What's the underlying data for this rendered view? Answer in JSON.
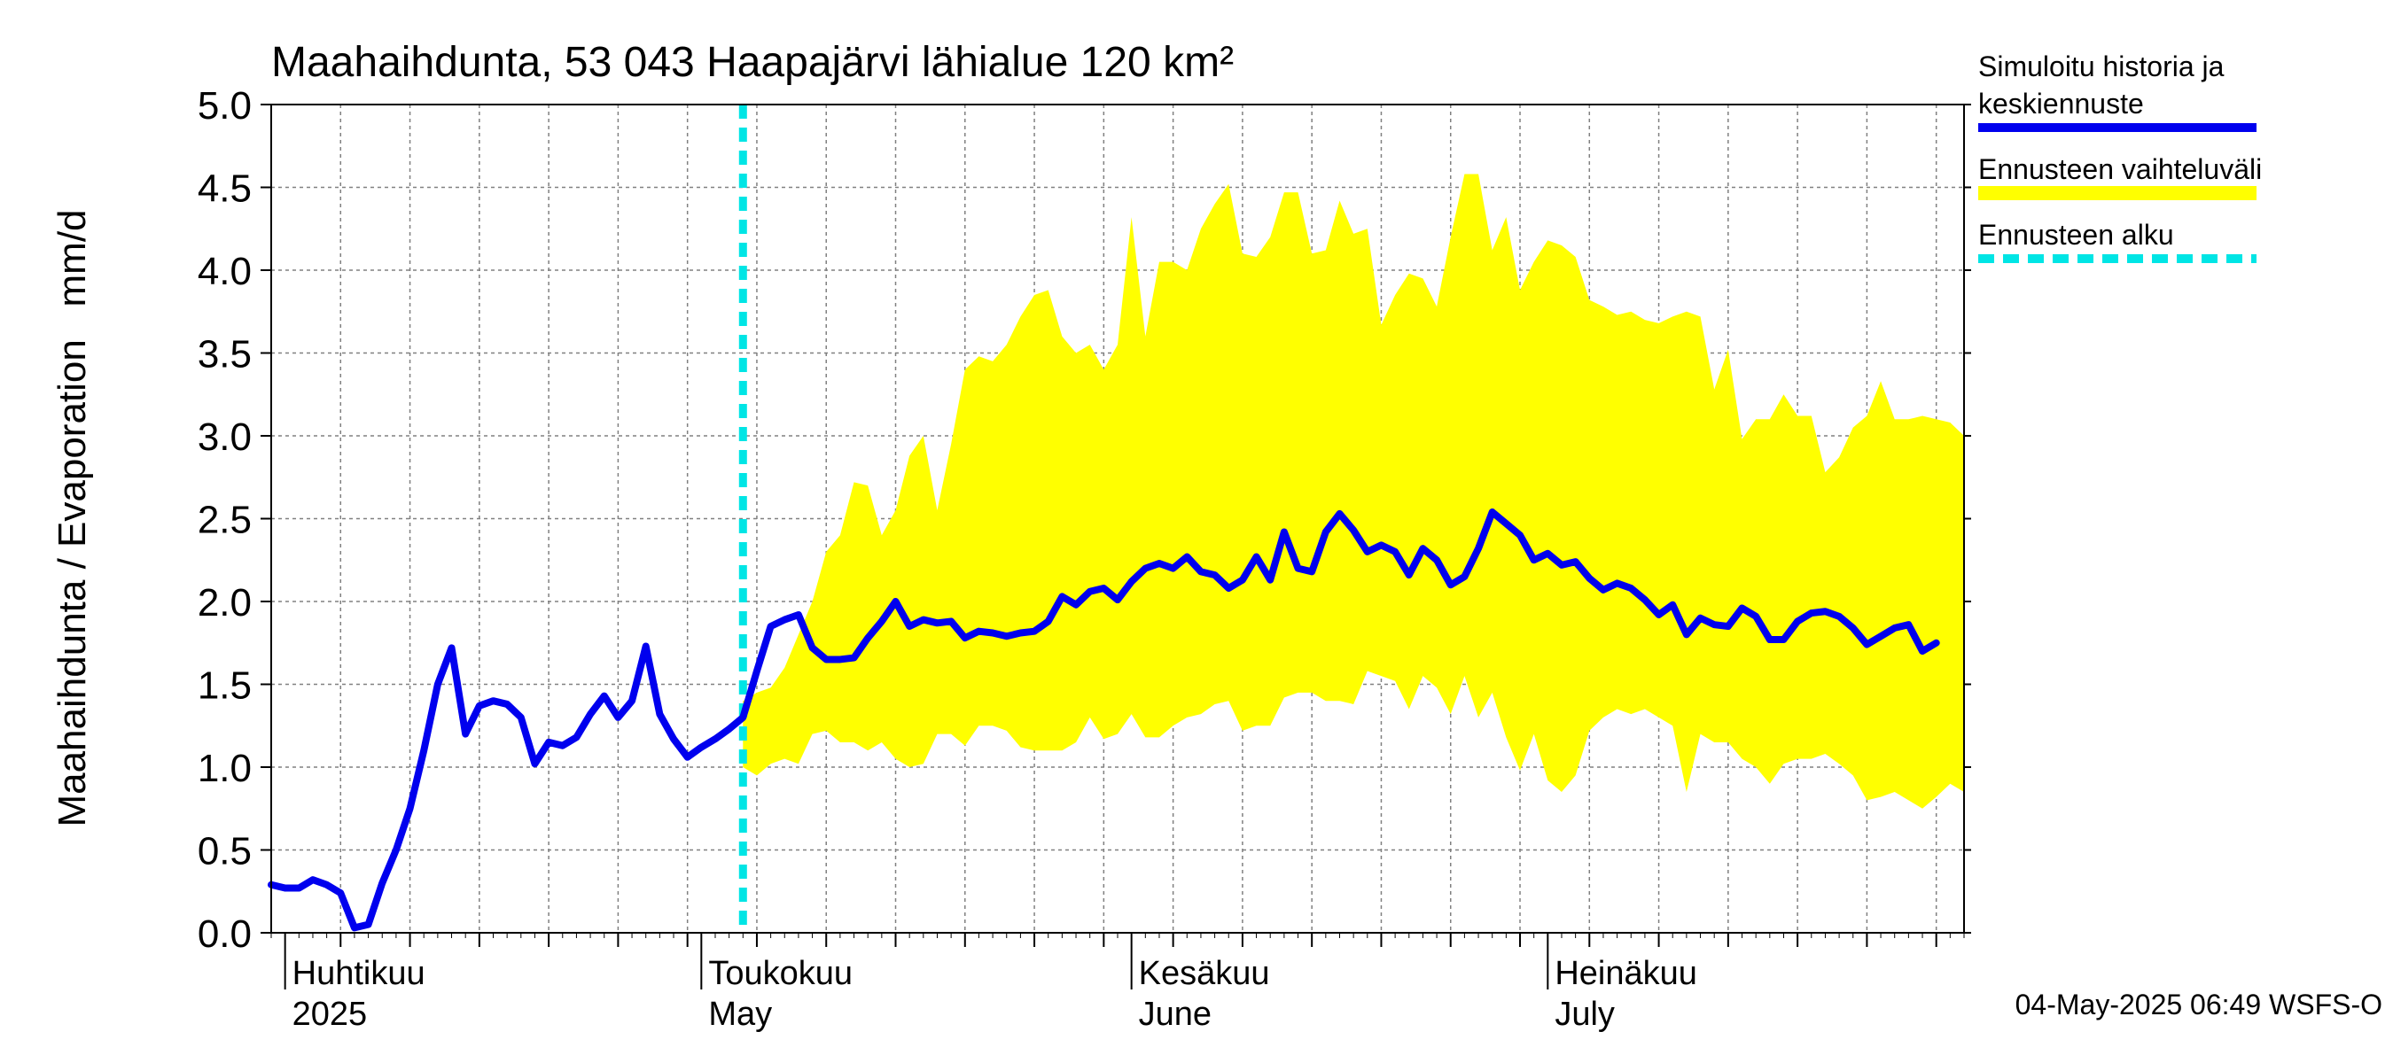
{
  "chart_data": {
    "type": "area",
    "title": "Maahaihdunta, 53 043 Haapajärvi lähialue 120 km²",
    "ylabel": "Maahaihdunta / Evaporation   mm/d",
    "ylim": [
      0,
      5
    ],
    "yticks": [
      "0.0",
      "0.5",
      "1.0",
      "1.5",
      "2.0",
      "2.5",
      "3.0",
      "3.5",
      "4.0",
      "4.5",
      "5.0"
    ],
    "xlim": [
      "2025-03-31",
      "2025-07-31"
    ],
    "grid": true,
    "legend_position": "right",
    "month_labels": [
      {
        "date": "2025-04-01",
        "fi": "Huhtikuu",
        "en": "2025"
      },
      {
        "date": "2025-05-01",
        "fi": "Toukokuu",
        "en": "May"
      },
      {
        "date": "2025-06-01",
        "fi": "Kesäkuu",
        "en": "June"
      },
      {
        "date": "2025-07-01",
        "fi": "Heinäkuu",
        "en": "July"
      }
    ],
    "forecast_start": "2025-05-04",
    "colors": {
      "series": "#0000ee",
      "band": "#ffff00",
      "forecast_line": "#00e5e5",
      "grid": "#808080"
    },
    "series": [
      {
        "name": "Simuloitu historia ja keskiennuste",
        "start_date": "2025-03-31",
        "values": [
          0.29,
          0.27,
          0.27,
          0.32,
          0.29,
          0.24,
          0.03,
          0.05,
          0.3,
          0.5,
          0.75,
          1.1,
          1.5,
          1.72,
          1.2,
          1.37,
          1.4,
          1.38,
          1.3,
          1.02,
          1.15,
          1.13,
          1.18,
          1.32,
          1.43,
          1.3,
          1.4,
          1.73,
          1.32,
          1.17,
          1.06,
          1.12,
          1.17,
          1.23,
          1.3,
          1.58,
          1.85,
          1.89,
          1.92,
          1.72,
          1.65,
          1.65,
          1.66,
          1.78,
          1.88,
          2.0,
          1.85,
          1.89,
          1.87,
          1.88,
          1.78,
          1.82,
          1.81,
          1.79,
          1.81,
          1.82,
          1.88,
          2.03,
          1.98,
          2.06,
          2.08,
          2.01,
          2.12,
          2.2,
          2.23,
          2.2,
          2.27,
          2.18,
          2.16,
          2.08,
          2.13,
          2.27,
          2.13,
          2.42,
          2.2,
          2.18,
          2.42,
          2.53,
          2.43,
          2.3,
          2.34,
          2.3,
          2.16,
          2.32,
          2.25,
          2.1,
          2.15,
          2.32,
          2.54,
          2.47,
          2.4,
          2.25,
          2.29,
          2.22,
          2.24,
          2.14,
          2.07,
          2.11,
          2.08,
          2.01,
          1.92,
          1.98,
          1.8,
          1.9,
          1.86,
          1.85,
          1.96,
          1.91,
          1.77,
          1.77,
          1.88,
          1.93,
          1.94,
          1.91,
          1.84,
          1.74,
          1.79,
          1.84,
          1.86,
          1.7,
          1.75
        ]
      },
      {
        "name": "Ennusteen vaihteluväli",
        "start_date": "2025-05-04",
        "upper": [
          1.4,
          1.45,
          1.48,
          1.6,
          1.8,
          2.0,
          2.3,
          2.4,
          2.72,
          2.7,
          2.4,
          2.55,
          2.88,
          3.0,
          2.55,
          2.95,
          3.4,
          3.48,
          3.45,
          3.55,
          3.72,
          3.85,
          3.88,
          3.6,
          3.5,
          3.55,
          3.4,
          3.55,
          4.32,
          3.6,
          4.05,
          4.05,
          4.0,
          4.25,
          4.4,
          4.52,
          4.1,
          4.08,
          4.2,
          4.47,
          4.47,
          4.1,
          4.12,
          4.42,
          4.22,
          4.25,
          3.67,
          3.85,
          3.98,
          3.95,
          3.78,
          4.2,
          4.58,
          4.58,
          4.12,
          4.32,
          3.88,
          4.05,
          4.18,
          4.15,
          4.08,
          3.82,
          3.78,
          3.73,
          3.75,
          3.7,
          3.68,
          3.72,
          3.75,
          3.72,
          3.28,
          3.52,
          2.98,
          3.1,
          3.1,
          3.25,
          3.12,
          3.12,
          2.78,
          2.87,
          3.05,
          3.12,
          3.33,
          3.1,
          3.1,
          3.12,
          3.1,
          3.08,
          3.0
        ],
        "lower": [
          1.0,
          0.95,
          1.02,
          1.05,
          1.02,
          1.2,
          1.22,
          1.15,
          1.15,
          1.1,
          1.15,
          1.05,
          1.0,
          1.02,
          1.2,
          1.2,
          1.13,
          1.25,
          1.25,
          1.22,
          1.12,
          1.1,
          1.1,
          1.1,
          1.15,
          1.3,
          1.17,
          1.2,
          1.32,
          1.18,
          1.18,
          1.25,
          1.3,
          1.32,
          1.38,
          1.4,
          1.22,
          1.25,
          1.25,
          1.42,
          1.45,
          1.45,
          1.4,
          1.4,
          1.38,
          1.58,
          1.55,
          1.52,
          1.35,
          1.55,
          1.48,
          1.32,
          1.55,
          1.3,
          1.45,
          1.18,
          0.98,
          1.2,
          0.92,
          0.85,
          0.95,
          1.22,
          1.3,
          1.35,
          1.32,
          1.35,
          1.3,
          1.25,
          0.85,
          1.2,
          1.15,
          1.15,
          1.05,
          1.0,
          0.9,
          1.02,
          1.05,
          1.05,
          1.08,
          1.02,
          0.95,
          0.8,
          0.82,
          0.85,
          0.8,
          0.75,
          0.82,
          0.9,
          0.85
        ]
      },
      {
        "name": "Ennusteen alku"
      }
    ]
  },
  "legend": {
    "sim_line1": "Simuloitu historia ja",
    "sim_line2": "keskiennuste",
    "band": "Ennusteen vaihteluväli",
    "forecast": "Ennusteen alku"
  },
  "timestamp": "04-May-2025 06:49 WSFS-O"
}
